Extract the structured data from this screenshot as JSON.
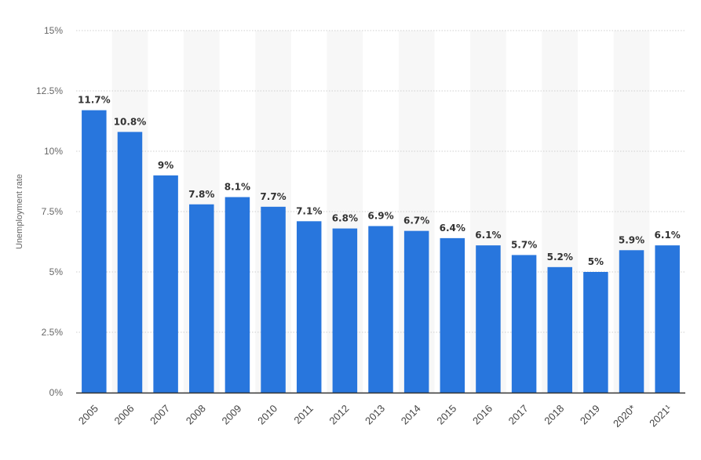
{
  "chart_data": {
    "type": "bar",
    "categories": [
      "2005",
      "2006",
      "2007",
      "2008",
      "2009",
      "2010",
      "2011",
      "2012",
      "2013",
      "2014",
      "2015",
      "2016",
      "2017",
      "2018",
      "2019",
      "2020*",
      "2021¹"
    ],
    "values": [
      11.7,
      10.8,
      9,
      7.8,
      8.1,
      7.7,
      7.1,
      6.8,
      6.9,
      6.7,
      6.4,
      6.1,
      5.7,
      5.2,
      5,
      5.9,
      6.1
    ],
    "data_labels": [
      "11.7%",
      "10.8%",
      "9%",
      "7.8%",
      "8.1%",
      "7.7%",
      "7.1%",
      "6.8%",
      "6.9%",
      "6.7%",
      "6.4%",
      "6.1%",
      "5.7%",
      "5.2%",
      "5%",
      "5.9%",
      "6.1%"
    ],
    "ylabel": "Unemployment rate",
    "ylim": [
      0,
      15
    ],
    "yticks": [
      0,
      2.5,
      5,
      7.5,
      10,
      12.5,
      15
    ],
    "ytick_labels": [
      "0%",
      "2.5%",
      "5%",
      "7.5%",
      "10%",
      "12.5%",
      "15%"
    ],
    "grid": true,
    "alternating_column_bands": true,
    "colors": {
      "bar": "#2876dd",
      "band": "#f7f7f7",
      "grid": "#cfcfcf",
      "axis": "#333333"
    }
  }
}
